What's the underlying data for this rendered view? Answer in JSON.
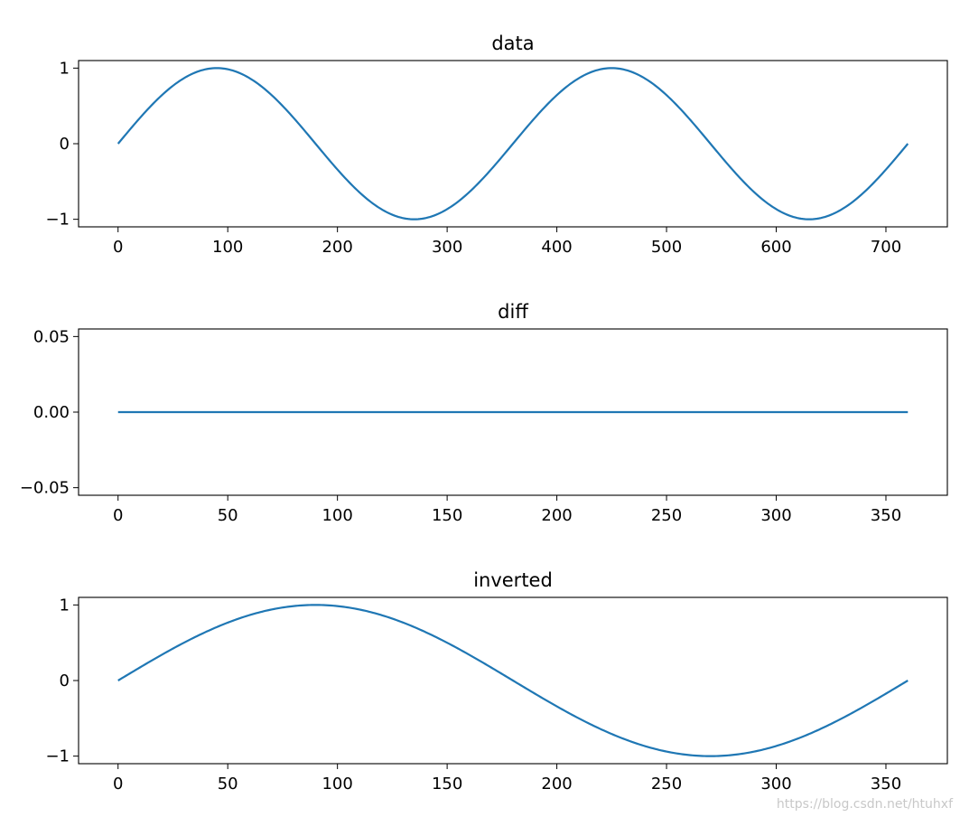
{
  "watermark": "https://blog.csdn.net/htuhxf",
  "chart_data": [
    {
      "type": "line",
      "title": "data",
      "xlabel": "",
      "ylabel": "",
      "xlim": [
        -36,
        756
      ],
      "ylim": [
        -1.1,
        1.1
      ],
      "xticks": [
        0,
        100,
        200,
        300,
        400,
        500,
        600,
        700
      ],
      "xtick_labels": [
        "0",
        "100",
        "200",
        "300",
        "400",
        "500",
        "600",
        "700"
      ],
      "yticks": [
        -1,
        0,
        1
      ],
      "ytick_labels": [
        "−1",
        "0",
        "1"
      ],
      "grid": false,
      "series": [
        {
          "color": "#1f77b4",
          "x": [
            0,
            30,
            60,
            90,
            120,
            150,
            180,
            210,
            240,
            270,
            300,
            330,
            360,
            390,
            420,
            450,
            480,
            510,
            540,
            570,
            600,
            630,
            660,
            690,
            720
          ],
          "y": [
            0,
            0.5,
            0.866,
            1,
            0.866,
            0.5,
            0,
            -0.5,
            -0.866,
            -1,
            -0.866,
            -0.5,
            0,
            0.5,
            0.866,
            1,
            0.866,
            0.5,
            0,
            -0.5,
            -0.866,
            -1,
            -0.866,
            -0.5,
            0
          ]
        }
      ]
    },
    {
      "type": "line",
      "title": "diff",
      "xlabel": "",
      "ylabel": "",
      "xlim": [
        -18,
        378
      ],
      "ylim": [
        -0.055,
        0.055
      ],
      "xticks": [
        0,
        50,
        100,
        150,
        200,
        250,
        300,
        350
      ],
      "xtick_labels": [
        "0",
        "50",
        "100",
        "150",
        "200",
        "250",
        "300",
        "350"
      ],
      "yticks": [
        -0.05,
        0,
        0.05
      ],
      "ytick_labels": [
        "−0.05",
        "0.00",
        "0.05"
      ],
      "grid": false,
      "series": [
        {
          "color": "#1f77b4",
          "x": [
            0,
            360
          ],
          "y": [
            0,
            0
          ]
        }
      ]
    },
    {
      "type": "line",
      "title": "inverted",
      "xlabel": "",
      "ylabel": "",
      "xlim": [
        -18,
        378
      ],
      "ylim": [
        -1.1,
        1.1
      ],
      "xticks": [
        0,
        50,
        100,
        150,
        200,
        250,
        300,
        350
      ],
      "xtick_labels": [
        "0",
        "50",
        "100",
        "150",
        "200",
        "250",
        "300",
        "350"
      ],
      "yticks": [
        -1,
        0,
        1
      ],
      "ytick_labels": [
        "−1",
        "0",
        "1"
      ],
      "grid": false,
      "series": [
        {
          "color": "#1f77b4",
          "x": [
            0,
            15,
            30,
            45,
            60,
            75,
            90,
            105,
            120,
            135,
            150,
            165,
            180,
            195,
            210,
            225,
            240,
            255,
            270,
            285,
            300,
            315,
            330,
            345,
            360
          ],
          "y": [
            0,
            0.259,
            0.5,
            0.707,
            0.866,
            0.966,
            1,
            0.966,
            0.866,
            0.707,
            0.5,
            0.259,
            0,
            -0.259,
            -0.5,
            -0.707,
            -0.866,
            -0.966,
            -1,
            -0.966,
            -0.866,
            -0.707,
            -0.5,
            -0.259,
            0
          ]
        }
      ]
    }
  ]
}
